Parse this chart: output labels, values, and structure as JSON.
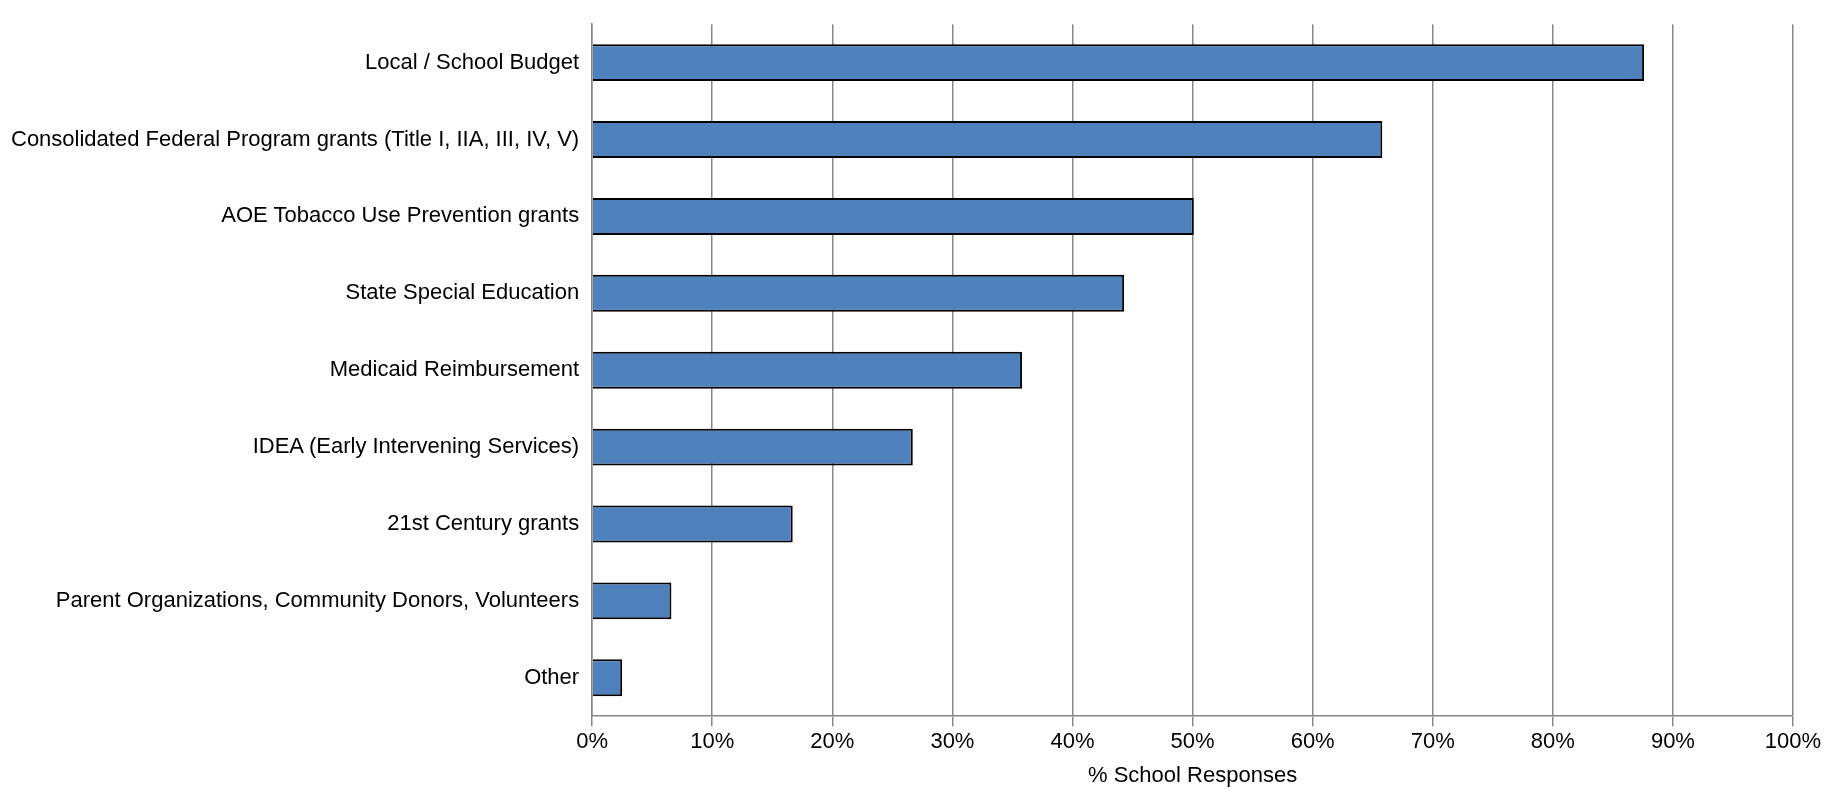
{
  "chart_data": {
    "type": "bar",
    "orientation": "horizontal",
    "xlabel": "% School Responses",
    "categories": [
      "Local / School Budget",
      "Consolidated Federal Program grants (Title I, IIA, III, IV, V)",
      "AOE Tobacco Use Prevention grants",
      "State Special Education",
      "Medicaid Reimbursement",
      "IDEA (Early Intervening Services)",
      "21st Century grants",
      "Parent Organizations, Community Donors, Volunteers",
      "Other"
    ],
    "values": [
      87.6,
      65.8,
      50.1,
      44.3,
      35.8,
      26.7,
      16.7,
      6.6,
      2.5
    ],
    "color": "#4f81bd",
    "xlim": [
      0,
      100
    ],
    "xticks": [
      {
        "value": 0,
        "label": "0%"
      },
      {
        "value": 10,
        "label": "10%"
      },
      {
        "value": 20,
        "label": "20%"
      },
      {
        "value": 30,
        "label": "30%"
      },
      {
        "value": 40,
        "label": "40%"
      },
      {
        "value": 50,
        "label": "50%"
      },
      {
        "value": 60,
        "label": "60%"
      },
      {
        "value": 70,
        "label": "70%"
      },
      {
        "value": 80,
        "label": "80%"
      },
      {
        "value": 90,
        "label": "90%"
      },
      {
        "value": 100,
        "label": "100%"
      }
    ],
    "grid": "x",
    "legend": false
  }
}
